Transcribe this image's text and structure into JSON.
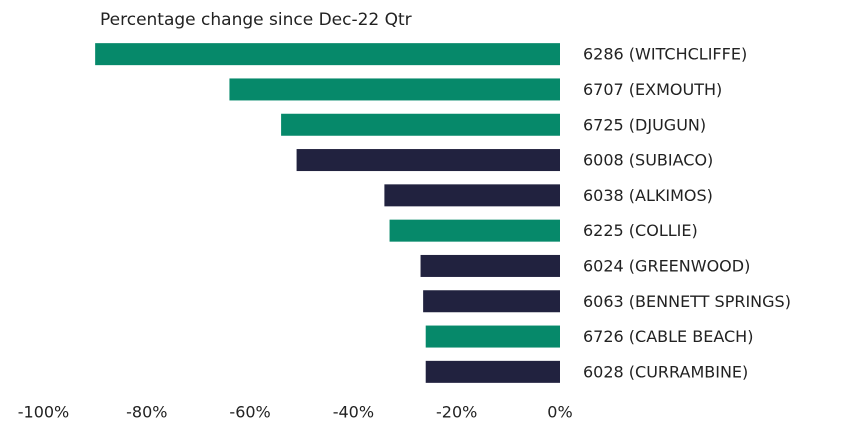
{
  "chart_data": {
    "type": "bar",
    "orientation": "horizontal",
    "title": "Percentage change since Dec-22 Qtr",
    "categories": [
      "6286 (WITCHCLIFFE)",
      "6707 (EXMOUTH)",
      "6725 (DJUGUN)",
      "6008 (SUBIACO)",
      "6038 (ALKIMOS)",
      "6225 (COLLIE)",
      "6024 (GREENWOOD)",
      "6063 (BENNETT SPRINGS)",
      "6726 (CABLE BEACH)",
      "6028 (CURRAMBINE)"
    ],
    "values": [
      -90,
      -64,
      -54,
      -51,
      -34,
      -33,
      -27,
      -26.5,
      -26,
      -26
    ],
    "colors": [
      "#06896a",
      "#06896a",
      "#06896a",
      "#21223f",
      "#21223f",
      "#06896a",
      "#21223f",
      "#21223f",
      "#06896a",
      "#21223f"
    ],
    "xlim": [
      -100,
      0
    ],
    "xticks": [
      {
        "value": -100,
        "label": "-100%"
      },
      {
        "value": -80,
        "label": "-80%"
      },
      {
        "value": -60,
        "label": "-60%"
      },
      {
        "value": -40,
        "label": "-40%"
      },
      {
        "value": -20,
        "label": "-20%"
      },
      {
        "value": 0,
        "label": "0%"
      }
    ],
    "grid": false
  }
}
